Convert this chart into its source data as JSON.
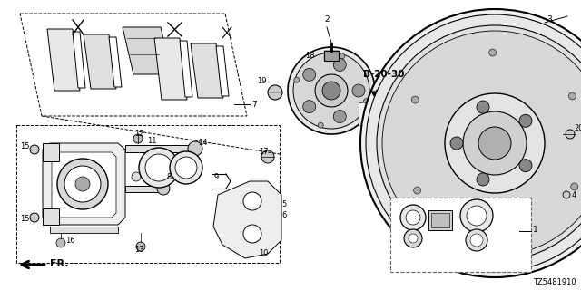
{
  "bg_color": "#ffffff",
  "part_code": "TZ5481910",
  "black": "#000000",
  "gray_light": "#f0f0f0",
  "gray_mid": "#e0e0e0",
  "gray_dark": "#cccccc"
}
